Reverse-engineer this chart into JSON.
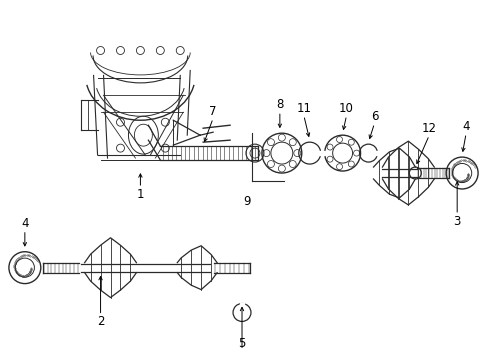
{
  "bg_color": "#ffffff",
  "line_color": "#2a2a2a",
  "label_color": "#000000",
  "label_fontsize": 8.5,
  "fig_width": 4.89,
  "fig_height": 3.6,
  "dpi": 100
}
